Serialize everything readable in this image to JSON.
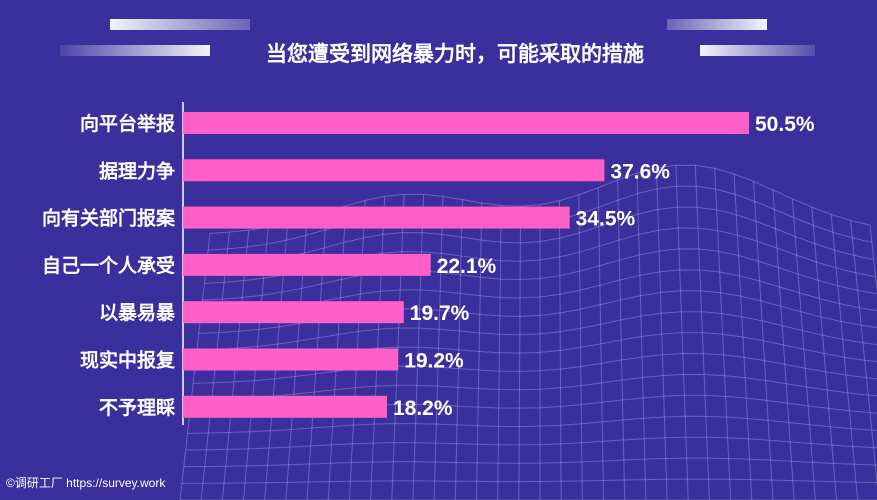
{
  "title": "当您遭受到网络暴力时，可能采取的措施",
  "credit": "©调研工厂 https://survey.work",
  "colors": {
    "background": "#3a2f9c",
    "bar": "#ff5fc8",
    "text": "#ffffff"
  },
  "chart_data": {
    "type": "bar",
    "orientation": "horizontal",
    "title": "当您遭受到网络暴力时，可能采取的措施",
    "categories": [
      "向平台举报",
      "据理力争",
      "向有关部门报案",
      "自己一个人承受",
      "以暴易暴",
      "现实中报复",
      "不予理睬"
    ],
    "values": [
      50.5,
      37.6,
      34.5,
      22.1,
      19.7,
      19.2,
      18.2
    ],
    "data_labels": [
      "50.5%",
      "37.6%",
      "34.5%",
      "22.1%",
      "19.7%",
      "19.2%",
      "18.2%"
    ],
    "unit": "%",
    "xlim": [
      0,
      50.5
    ],
    "grid": false,
    "legend": "none"
  }
}
